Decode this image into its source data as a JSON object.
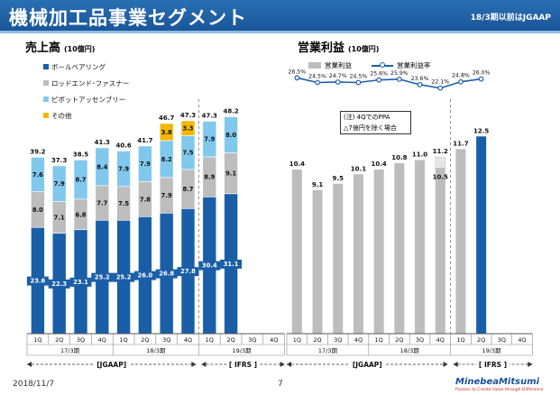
{
  "header": {
    "title": "機械加工品事業セグメント",
    "note": "18/3期以前はJGAAP"
  },
  "sales": {
    "title": "売上高",
    "unit": "(10億円)",
    "legend": [
      {
        "label": "ボールベアリング",
        "color": "#1a5ea8"
      },
      {
        "label": "ロッドエンド･ファスナー",
        "color": "#bdbdbd"
      },
      {
        "label": "ピボットアッセンブリー",
        "color": "#80c8ee"
      },
      {
        "label": "その他",
        "color": "#f4b700"
      }
    ]
  },
  "op": {
    "title": "営業利益",
    "unit": "(10億円)",
    "legend_bar": "営業利益",
    "legend_line": "営業利益率",
    "note_line1": "(注) 4QでのPPA",
    "note_line2": "△7億円を除く場合"
  },
  "periods": {
    "fy17": "17/3期",
    "fy18": "18/3期",
    "fy19": "19/3期",
    "jgaap": "[JGAAP]",
    "ifrs": "[ IFRS ]"
  },
  "footer": {
    "date": "2018/11/7",
    "page": "7"
  },
  "logo": {
    "name": "MinebeaMitsumi",
    "tagline": "Passion to Create Value through Difference"
  },
  "colors": {
    "ball": "#1a5ea8",
    "rod": "#bdbdbd",
    "pivot": "#80c8ee",
    "other": "#f4b700",
    "op_bar": "#bdbdbd",
    "op_last": "#1a5ea8",
    "line": "#1a5ea8"
  },
  "chart_data": [
    {
      "type": "bar",
      "stacked": true,
      "title": "売上高 (10億円)",
      "categories": [
        "1Q",
        "2Q",
        "3Q",
        "4Q",
        "1Q",
        "2Q",
        "3Q",
        "4Q",
        "1Q",
        "2Q",
        "3Q",
        "4Q"
      ],
      "series": [
        {
          "name": "ボールベアリング",
          "values": [
            23.6,
            22.3,
            23.1,
            25.2,
            25.2,
            26.0,
            26.8,
            27.8,
            30.4,
            31.1,
            null,
            null
          ]
        },
        {
          "name": "ロッドエンド･ファスナー",
          "values": [
            8.0,
            7.1,
            6.8,
            7.7,
            7.5,
            7.8,
            7.9,
            8.7,
            8.9,
            9.1,
            null,
            null
          ]
        },
        {
          "name": "ピボットアッセンブリー",
          "values": [
            7.6,
            7.9,
            8.7,
            8.4,
            7.9,
            7.9,
            8.2,
            7.5,
            7.9,
            8.0,
            null,
            null
          ]
        },
        {
          "name": "その他",
          "values": [
            null,
            null,
            null,
            null,
            null,
            null,
            3.8,
            3.3,
            null,
            null,
            null,
            null
          ]
        }
      ],
      "totals": [
        39.2,
        37.3,
        38.5,
        41.3,
        40.6,
        41.7,
        46.7,
        47.3,
        47.3,
        48.2,
        null,
        null
      ],
      "ylim": [
        0,
        55
      ]
    },
    {
      "type": "bar+line",
      "title": "営業利益 (10億円)",
      "categories": [
        "1Q",
        "2Q",
        "3Q",
        "4Q",
        "1Q",
        "2Q",
        "3Q",
        "4Q",
        "1Q",
        "2Q",
        "3Q",
        "4Q"
      ],
      "series": [
        {
          "name": "営業利益",
          "values": [
            10.4,
            9.1,
            9.5,
            10.1,
            10.4,
            10.8,
            11.0,
            10.5,
            11.7,
            12.5,
            null,
            null
          ]
        },
        {
          "name": "営業利益率",
          "values": [
            26.5,
            24.5,
            24.7,
            24.5,
            25.6,
            25.9,
            23.6,
            22.1,
            24.8,
            26.0,
            null,
            null
          ],
          "unit": "%"
        }
      ],
      "q4_18_excl_ppa": 11.2,
      "ylim": [
        0,
        14
      ]
    }
  ]
}
